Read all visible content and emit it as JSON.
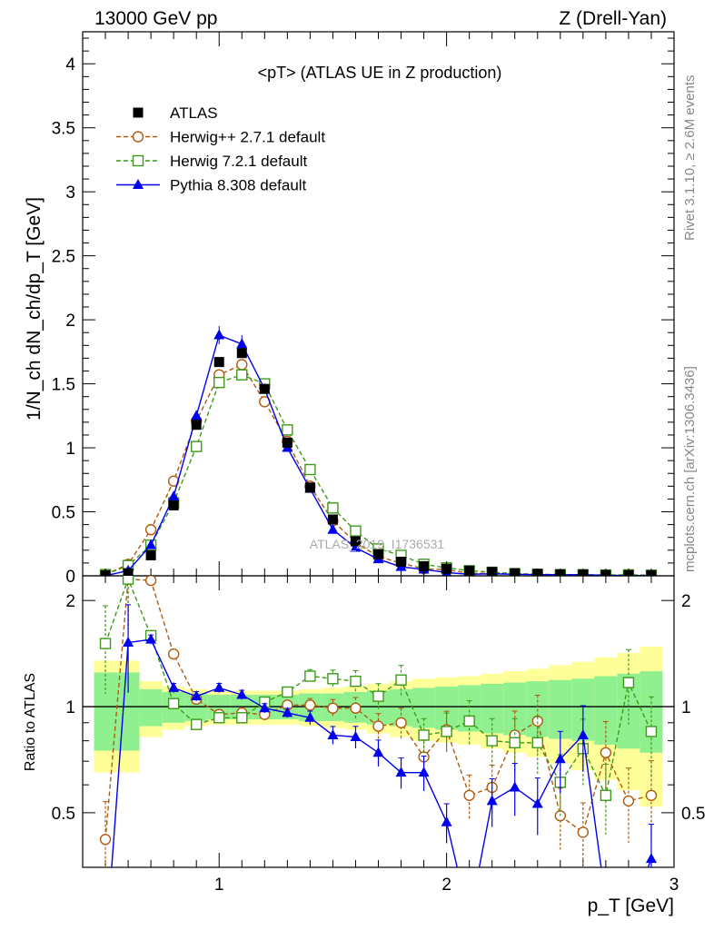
{
  "header": {
    "energy_label": "13000 GeV pp",
    "process_label": "Z (Drell-Yan)"
  },
  "side_labels": {
    "rivet": "Rivet 3.1.10, ≥ 2.6M events",
    "mcplots": "mcplots.cern.ch [arXiv:1306.3436]"
  },
  "colors": {
    "atlas": "#000000",
    "herwigpp": "#b15a0f",
    "herwig7": "#3e9a1a",
    "pythia": "#0000ee",
    "band_inner": "#90f090",
    "band_outer": "#ffff99"
  },
  "chart_data": {
    "type": "line",
    "title": "<pT> (ATLAS UE in Z production)",
    "xlabel": "p_T [GeV]",
    "ylabel": "1/N_ch dN_ch/dp_T [GeV]",
    "ratio_ylabel": "Ratio to ATLAS",
    "watermark": "ATLAS_2019_I1736531",
    "xlim": [
      0.4,
      3.0
    ],
    "ylim": [
      0,
      4.25
    ],
    "ratio_ylim": [
      0.35,
      2.35
    ],
    "x_ticks": [
      "1",
      "2",
      "3"
    ],
    "y_ticks": [
      "0",
      "0.5",
      "1",
      "1.5",
      "2",
      "2.5",
      "3",
      "3.5",
      "4"
    ],
    "ratio_y_ticks": [
      "0.5",
      "1",
      "2"
    ],
    "legend_position": "top-left",
    "x": [
      0.5,
      0.6,
      0.7,
      0.8,
      0.9,
      1.0,
      1.1,
      1.2,
      1.3,
      1.4,
      1.5,
      1.6,
      1.7,
      1.8,
      1.9,
      2.0,
      2.1,
      2.2,
      2.3,
      2.4,
      2.5,
      2.6,
      2.7,
      2.8,
      2.9
    ],
    "series": [
      {
        "name": "ATLAS",
        "marker": "filled-square",
        "values": [
          0.005,
          0.02,
          0.16,
          0.55,
          1.18,
          1.67,
          1.74,
          1.46,
          1.04,
          0.69,
          0.44,
          0.27,
          0.17,
          0.11,
          0.075,
          0.055,
          0.04,
          0.03,
          0.02,
          0.015,
          0.012,
          0.01,
          0.007,
          0.006,
          0.005
        ]
      },
      {
        "name": "Herwig++ 2.7.1 default",
        "marker": "open-circle",
        "dashed": true,
        "values": [
          0.01,
          0.09,
          0.36,
          0.74,
          1.21,
          1.57,
          1.65,
          1.36,
          1.05,
          0.7,
          0.43,
          0.26,
          0.15,
          0.1,
          0.055,
          0.048,
          0.02,
          0.018,
          0.015,
          0.013,
          0.006,
          0.004,
          0.005,
          0.003,
          0.003
        ]
      },
      {
        "name": "Herwig 7.2.1 default",
        "marker": "open-square",
        "dashed": true,
        "values": [
          0.01,
          0.08,
          0.24,
          0.57,
          1.01,
          1.51,
          1.57,
          1.5,
          1.14,
          0.83,
          0.53,
          0.35,
          0.21,
          0.16,
          0.09,
          0.062,
          0.04,
          0.028,
          0.017,
          0.012,
          0.009,
          0.009,
          0.006,
          0.008,
          0.005
        ]
      },
      {
        "name": "Pythia 8.308 default",
        "marker": "filled-triangle",
        "dashed": false,
        "values": [
          0.001,
          0.04,
          0.24,
          0.62,
          1.25,
          1.88,
          1.81,
          1.46,
          1.0,
          0.68,
          0.36,
          0.22,
          0.13,
          0.07,
          0.05,
          0.025,
          0.012,
          0.016,
          0.012,
          0.009,
          0.0085,
          0.0083,
          0.004,
          0.002,
          0.0015
        ]
      }
    ],
    "ratio": {
      "herwigpp": [
        0.42,
        2.3,
        2.28,
        1.41,
        1.05,
        0.95,
        0.96,
        0.95,
        1.01,
        1.01,
        0.99,
        0.99,
        0.88,
        0.9,
        0.72,
        0.86,
        0.56,
        0.59,
        0.83,
        0.91,
        0.49,
        0.44,
        0.74,
        0.54,
        0.56
      ],
      "herwig7": [
        1.51,
        2.3,
        1.59,
        1.02,
        0.89,
        0.93,
        0.93,
        1.03,
        1.1,
        1.22,
        1.2,
        1.18,
        1.07,
        1.19,
        0.83,
        0.85,
        0.91,
        0.8,
        0.79,
        0.79,
        0.61,
        0.76,
        0.56,
        1.17,
        0.85
      ],
      "pythia": [
        0.1,
        1.52,
        1.55,
        1.13,
        1.07,
        1.13,
        1.08,
        0.99,
        0.96,
        0.93,
        0.83,
        0.82,
        0.74,
        0.65,
        0.65,
        0.47,
        0.25,
        0.54,
        0.59,
        0.53,
        0.71,
        0.83,
        0.28,
        0.25,
        0.37
      ],
      "band_inner_halfwidth": [
        0.25,
        0.25,
        0.12,
        0.1,
        0.09,
        0.08,
        0.08,
        0.08,
        0.08,
        0.09,
        0.09,
        0.1,
        0.11,
        0.12,
        0.13,
        0.14,
        0.15,
        0.16,
        0.17,
        0.18,
        0.19,
        0.2,
        0.22,
        0.24,
        0.26
      ],
      "band_outer_halfwidth": [
        0.35,
        0.35,
        0.18,
        0.14,
        0.12,
        0.11,
        0.11,
        0.11,
        0.11,
        0.12,
        0.13,
        0.14,
        0.16,
        0.18,
        0.2,
        0.21,
        0.22,
        0.24,
        0.26,
        0.28,
        0.31,
        0.34,
        0.38,
        0.42,
        0.48
      ]
    }
  }
}
